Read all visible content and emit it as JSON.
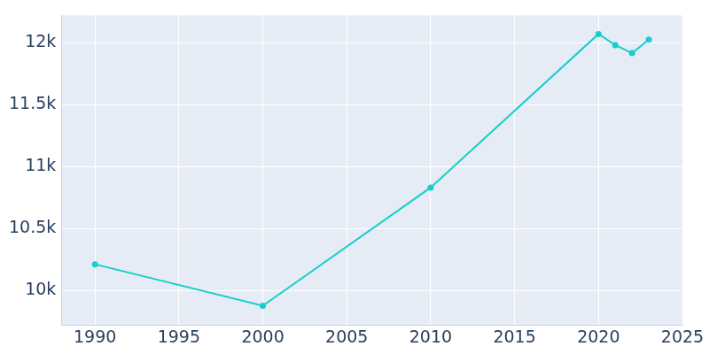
{
  "chart_data": {
    "type": "line",
    "x": [
      1990,
      2000,
      2010,
      2020,
      2021,
      2022,
      2023
    ],
    "values": [
      10210,
      9875,
      10830,
      12070,
      11980,
      11915,
      12025
    ],
    "color": "#17cfc9",
    "marker": "circle",
    "xlim": [
      1988,
      2025
    ],
    "xticks": [
      1990,
      1995,
      2000,
      2005,
      2010,
      2015,
      2020,
      2025
    ],
    "ylim": [
      9720,
      12220
    ],
    "yticks": [
      {
        "value": 10000,
        "label": "10k"
      },
      {
        "value": 10500,
        "label": "10.5k"
      },
      {
        "value": 11000,
        "label": "11k"
      },
      {
        "value": 11500,
        "label": "11.5k"
      },
      {
        "value": 12000,
        "label": "12k"
      }
    ],
    "grid": true
  }
}
